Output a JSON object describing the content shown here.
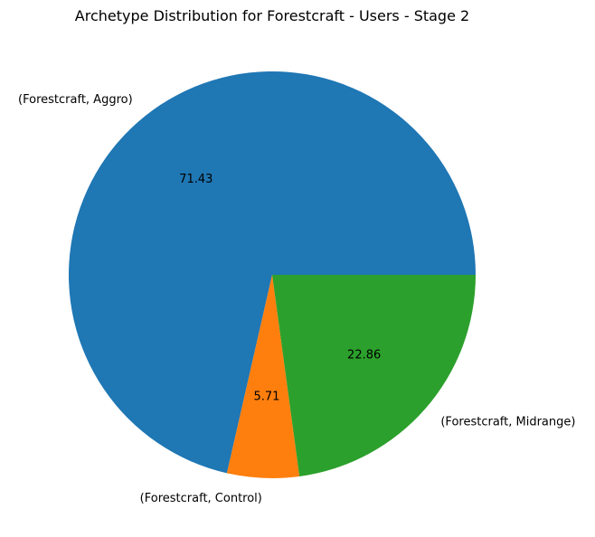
{
  "chart_data": {
    "type": "pie",
    "title": "Archetype Distribution for Forestcraft - Users - Stage 2",
    "categories": [
      "(Forestcraft, Aggro)",
      "(Forestcraft, Control)",
      "(Forestcraft, Midrange)"
    ],
    "values": [
      71.43,
      5.71,
      22.86
    ],
    "value_labels": [
      "71.43",
      "5.71",
      "22.86"
    ],
    "colors": [
      "#1f77b4",
      "#ff7f0e",
      "#2ca02c"
    ],
    "legend": "none"
  }
}
